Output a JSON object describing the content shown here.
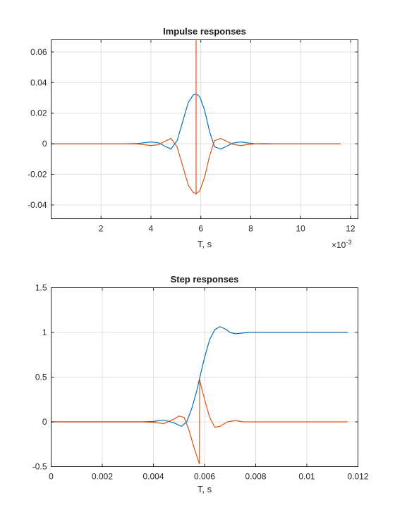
{
  "colors": {
    "blue": "#0072bd",
    "orange": "#d95319"
  },
  "chart_data": [
    {
      "type": "line",
      "title": "Impulse responses",
      "xlabel": "T, s",
      "ylabel": "",
      "x_exponent_label": "×10",
      "x_exponent": "-3",
      "xlim": [
        0,
        12.3
      ],
      "ylim": [
        -0.049,
        0.068
      ],
      "xticks": [
        2,
        4,
        6,
        8,
        10,
        12
      ],
      "xtick_labels": [
        "2",
        "4",
        "6",
        "8",
        "10",
        "12"
      ],
      "yticks": [
        -0.04,
        -0.02,
        0,
        0.02,
        0.04,
        0.06
      ],
      "ytick_labels": [
        "-0.04",
        "-0.02",
        "0",
        "0.02",
        "0.04",
        "0.06"
      ],
      "grid": true,
      "series": [
        {
          "color": "#0072bd",
          "x": [
            0,
            3.0,
            3.4,
            3.7,
            4.0,
            4.3,
            4.55,
            4.8,
            5.05,
            5.3,
            5.5,
            5.7,
            5.82,
            5.95,
            6.15,
            6.35,
            6.55,
            6.8,
            7.05,
            7.3,
            7.6,
            7.9,
            8.2,
            8.5,
            9.0,
            11.6
          ],
          "y": [
            0,
            0,
            0.0001,
            0.0006,
            0.0012,
            0.0006,
            -0.0015,
            -0.0035,
            0.002,
            0.016,
            0.027,
            0.032,
            0.0325,
            0.031,
            0.022,
            0.008,
            -0.002,
            -0.0035,
            -0.0015,
            0.0005,
            0.0012,
            0.0005,
            0,
            -0.0001,
            0,
            0
          ]
        },
        {
          "color": "#d95319",
          "x": [
            0,
            3.0,
            3.4,
            3.7,
            4.0,
            4.3,
            4.55,
            4.8,
            5.05,
            5.3,
            5.5,
            5.7,
            5.82,
            5.95,
            6.15,
            6.35,
            6.55,
            6.8,
            7.05,
            7.3,
            7.6,
            7.9,
            8.2,
            8.5,
            9.0,
            11.6
          ],
          "y": [
            0,
            0,
            -0.0001,
            -0.0006,
            -0.0012,
            -0.0006,
            0.0015,
            0.0035,
            -0.002,
            -0.016,
            -0.027,
            -0.032,
            -0.0325,
            -0.031,
            -0.022,
            -0.008,
            0.002,
            0.0035,
            0.0015,
            -0.0005,
            -0.0012,
            -0.0005,
            0,
            0.0001,
            0,
            0
          ]
        },
        {
          "color": "#d95319",
          "x": [
            5.81,
            5.81,
            5.81
          ],
          "y": [
            0.068,
            -0.033,
            0.068
          ]
        }
      ]
    },
    {
      "type": "line",
      "title": "Step responses",
      "xlabel": "T, s",
      "ylabel": "",
      "xlim": [
        0,
        0.012
      ],
      "ylim": [
        -0.5,
        1.5
      ],
      "xticks": [
        0,
        0.002,
        0.004,
        0.006,
        0.008,
        0.01,
        0.012
      ],
      "xtick_labels": [
        "0",
        "0.002",
        "0.004",
        "0.006",
        "0.008",
        "0.01",
        "0.012"
      ],
      "yticks": [
        -0.5,
        0,
        0.5,
        1,
        1.5
      ],
      "ytick_labels": [
        "-0.5",
        "0",
        "0.5",
        "1",
        "1.5"
      ],
      "grid": true,
      "series": [
        {
          "color": "#0072bd",
          "x": [
            0,
            0.0035,
            0.004,
            0.0044,
            0.0048,
            0.0051,
            0.0053,
            0.0055,
            0.0057,
            0.0058,
            0.006,
            0.0062,
            0.0064,
            0.0066,
            0.0068,
            0.007,
            0.0072,
            0.0074,
            0.0077,
            0.008,
            0.0085,
            0.0116
          ],
          "y": [
            0,
            0,
            0.005,
            0.02,
            -0.01,
            -0.05,
            0.0,
            0.15,
            0.35,
            0.48,
            0.72,
            0.92,
            1.03,
            1.065,
            1.04,
            1.0,
            0.985,
            0.99,
            1.0,
            1.0,
            1.0,
            1.0
          ]
        },
        {
          "color": "#d95319",
          "x": [
            0,
            0.0035,
            0.004,
            0.0044,
            0.0048,
            0.005,
            0.0052,
            0.0054,
            0.0056,
            0.0058,
            0.00581,
            0.00583,
            0.006,
            0.0062,
            0.0064,
            0.0066,
            0.0069,
            0.0072,
            0.0075,
            0.008,
            0.0116
          ],
          "y": [
            0,
            0,
            -0.005,
            -0.02,
            0.03,
            0.065,
            0.05,
            -0.1,
            -0.3,
            -0.47,
            0.48,
            0.44,
            0.25,
            0.05,
            -0.06,
            -0.05,
            0.0,
            0.015,
            0.0,
            0.0,
            0.0
          ]
        }
      ]
    }
  ]
}
